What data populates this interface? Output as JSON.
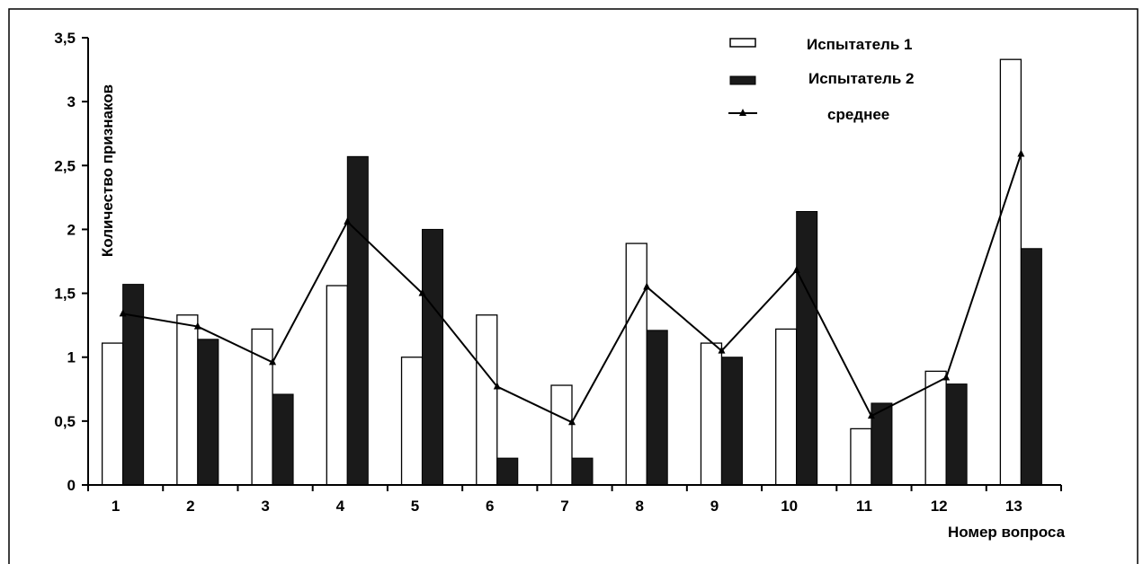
{
  "chart_data": {
    "type": "bar",
    "categories": [
      "1",
      "2",
      "3",
      "4",
      "5",
      "6",
      "7",
      "8",
      "9",
      "10",
      "11",
      "12",
      "13"
    ],
    "series": [
      {
        "name": "Испытатель 1",
        "kind": "bar",
        "style": "hollow",
        "values": [
          1.11,
          1.33,
          1.22,
          1.56,
          1.0,
          1.33,
          0.78,
          1.89,
          1.11,
          1.22,
          0.44,
          0.89,
          3.33
        ]
      },
      {
        "name": "Испытатель 2",
        "kind": "bar",
        "style": "filled",
        "values": [
          1.57,
          1.14,
          0.71,
          2.57,
          2.0,
          0.21,
          0.21,
          1.21,
          1.0,
          2.14,
          0.64,
          0.79,
          1.85
        ]
      },
      {
        "name": "среднее",
        "kind": "line",
        "marker": "triangle",
        "values": [
          1.34,
          1.24,
          0.96,
          2.06,
          1.5,
          0.77,
          0.49,
          1.55,
          1.05,
          1.68,
          0.54,
          0.84,
          2.59
        ]
      }
    ],
    "title": "",
    "xlabel": "Номер вопроса",
    "ylabel": "Количество признаков",
    "ylim": [
      0,
      3.5
    ],
    "yticks": [
      "0",
      "0,5",
      "1",
      "1,5",
      "2",
      "2,5",
      "3",
      "3,5"
    ],
    "grid": false,
    "legend_position": "top-right"
  }
}
